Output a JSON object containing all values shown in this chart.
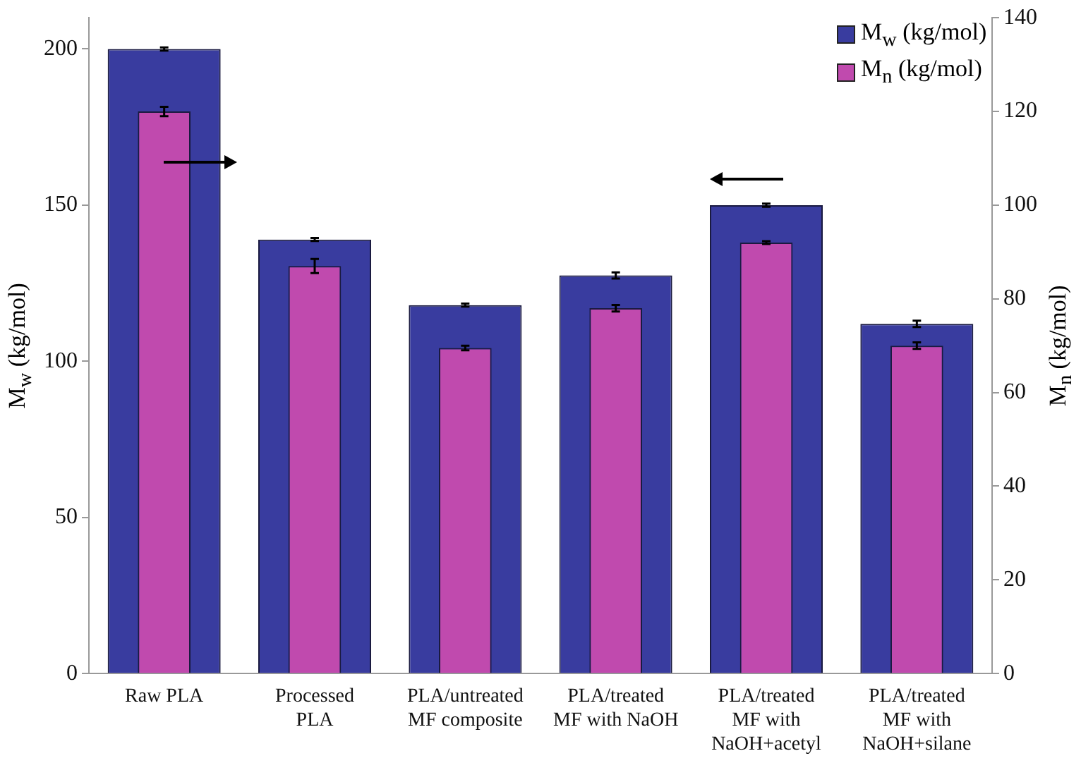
{
  "chart_data": {
    "type": "bar",
    "categories": [
      "Raw PLA",
      "Processed PLA",
      "PLA/untreated MF composite",
      "PLA/treated MF with NaOH",
      "PLA/treated MF with NaOH+acetyl",
      "PLA/treated MF with NaOH+silane"
    ],
    "series": [
      {
        "name": "M$_{w}$ (kg/mol)",
        "color": "#393c9f",
        "values": [
          200,
          139,
          118,
          127.5,
          150,
          112
        ],
        "errors": [
          0.5,
          0.5,
          0.5,
          1,
          0.5,
          1
        ]
      },
      {
        "name": "M$_{n}$ (kg/mol)",
        "color": "#c04aae",
        "axis": "y2",
        "values": [
          120,
          87,
          69.5,
          78,
          92,
          70
        ],
        "errors": [
          1,
          1.5,
          0.5,
          0.7,
          0.3,
          0.7
        ]
      }
    ],
    "ylabel": "M$_{w}$ (kg/mol)",
    "y2label": "M$_{n}$ (kg/mol)",
    "ylim": [
      0,
      210
    ],
    "yticks": [
      0,
      50,
      100,
      150,
      200
    ],
    "y2lim": [
      0,
      140
    ],
    "y2ticks": [
      0,
      20,
      40,
      60,
      80,
      100,
      120,
      140
    ],
    "grid": false,
    "legend": "top right"
  }
}
